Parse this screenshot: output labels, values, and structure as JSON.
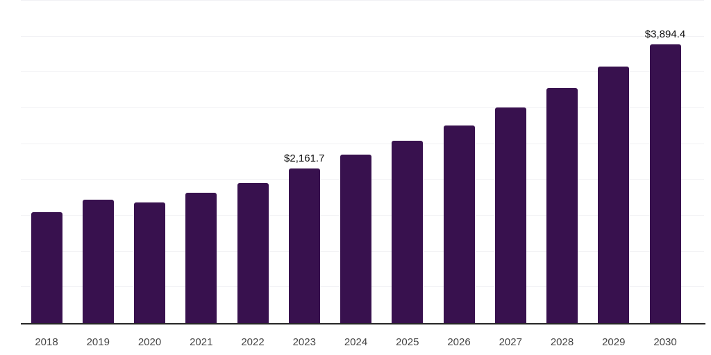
{
  "chart_data": {
    "type": "bar",
    "title": "",
    "xlabel": "",
    "ylabel": "",
    "categories": [
      "2018",
      "2019",
      "2020",
      "2021",
      "2022",
      "2023",
      "2024",
      "2025",
      "2026",
      "2027",
      "2028",
      "2029",
      "2030"
    ],
    "series": [
      {
        "name": "market-value-usd",
        "values": [
          1550,
          1724,
          1686,
          1821,
          1956,
          2161.7,
          2352,
          2545,
          2758,
          3009,
          3280,
          3579,
          3894.4
        ]
      }
    ],
    "data_labels": [
      null,
      null,
      null,
      null,
      null,
      "$2,161.7",
      null,
      null,
      null,
      null,
      null,
      null,
      "$3,894.4"
    ],
    "ylim": [
      0,
      4500
    ],
    "grid_step": 500,
    "grid": "horizontal-only",
    "y_axis_tick_labels_visible": false,
    "legend_position": "none",
    "colors": {
      "bar": "#38114e",
      "axis_line": "#262626",
      "gridline": "#f1f1f4",
      "x_tick_label": "#454545",
      "data_label": "#111111",
      "background": "#ffffff"
    }
  }
}
